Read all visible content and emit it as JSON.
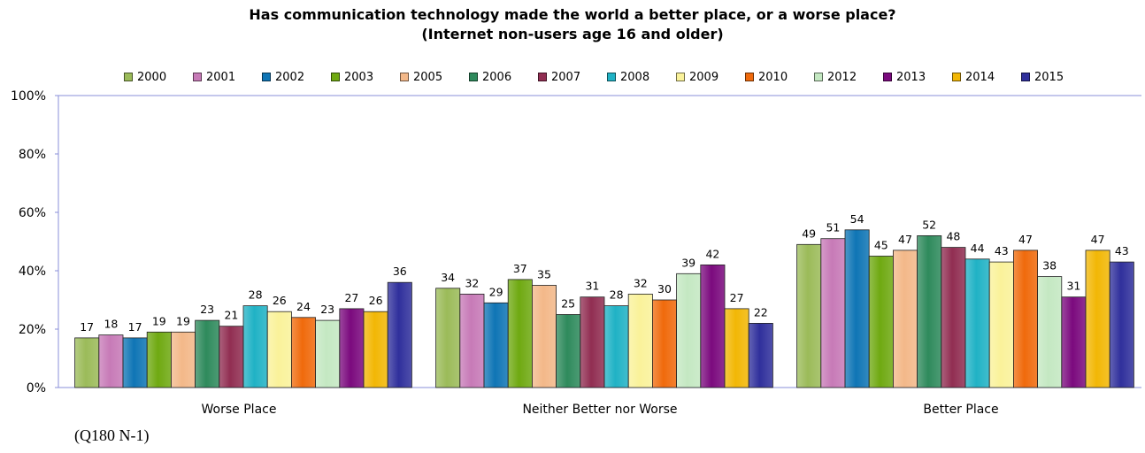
{
  "chart_data": {
    "type": "bar",
    "title": "Has communication technology made the world a better place, or a worse place?",
    "subtitle": "(Internet non-users age 16 and older)",
    "categories": [
      "Worse Place",
      "Neither Better nor Worse",
      "Better Place"
    ],
    "ylim": [
      0,
      100
    ],
    "yticks": [
      "0%",
      "20%",
      "40%",
      "60%",
      "80%",
      "100%"
    ],
    "legend_position": "top",
    "grid": false,
    "series": [
      {
        "name": "2000",
        "color": "#9BBB59",
        "values": [
          17,
          34,
          49
        ]
      },
      {
        "name": "2001",
        "color": "#C77AB7",
        "values": [
          18,
          32,
          51
        ]
      },
      {
        "name": "2002",
        "color": "#0F75B5",
        "values": [
          17,
          29,
          54
        ]
      },
      {
        "name": "2003",
        "color": "#6FA911",
        "values": [
          19,
          37,
          45
        ]
      },
      {
        "name": "2005",
        "color": "#F3B889",
        "values": [
          19,
          35,
          47
        ]
      },
      {
        "name": "2006",
        "color": "#2E8A5C",
        "values": [
          23,
          25,
          52
        ]
      },
      {
        "name": "2007",
        "color": "#912E52",
        "values": [
          21,
          31,
          48
        ]
      },
      {
        "name": "2008",
        "color": "#20B2C5",
        "values": [
          28,
          28,
          44
        ]
      },
      {
        "name": "2009",
        "color": "#FAF29A",
        "values": [
          26,
          32,
          43
        ]
      },
      {
        "name": "2010",
        "color": "#F06A0C",
        "values": [
          24,
          30,
          47
        ]
      },
      {
        "name": "2012",
        "color": "#C4E8C2",
        "values": [
          23,
          39,
          38
        ]
      },
      {
        "name": "2013",
        "color": "#7B0A7E",
        "values": [
          27,
          42,
          31
        ]
      },
      {
        "name": "2014",
        "color": "#F2B705",
        "values": [
          26,
          27,
          47
        ]
      },
      {
        "name": "2015",
        "color": "#30309C",
        "values": [
          36,
          22,
          43
        ]
      }
    ]
  },
  "footnote": "(Q180 N-1)"
}
